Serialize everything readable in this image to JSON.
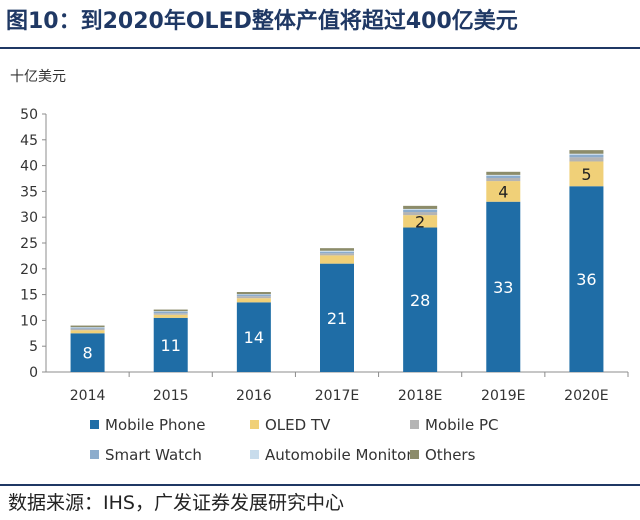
{
  "title": "图10：到2020年OLED整体产值将超过400亿美元",
  "unit_label": "十亿美元",
  "source": "数据来源：IHS，广发证券发展研究中心",
  "chart_data": {
    "type": "stacked-bar",
    "title": "到2020年OLED整体产值将超过400亿美元",
    "ylabel": "十亿美元",
    "ylim": [
      0,
      50
    ],
    "yticks": [
      0,
      5,
      10,
      15,
      20,
      25,
      30,
      35,
      40,
      45,
      50
    ],
    "grid": false,
    "legend_position": "bottom",
    "categories": [
      "2014",
      "2015",
      "2016",
      "2017E",
      "2018E",
      "2019E",
      "2020E"
    ],
    "series": [
      {
        "name": "Mobile Phone",
        "color": "#1f6da6",
        "values": [
          7.5,
          10.5,
          13.5,
          21,
          28,
          33,
          36
        ],
        "labels": [
          "8",
          "11",
          "14",
          "21",
          "28",
          "33",
          "36"
        ]
      },
      {
        "name": "OLED TV",
        "color": "#f0d078",
        "values": [
          0.6,
          0.6,
          0.8,
          1.6,
          2.4,
          4,
          4.8
        ],
        "labels": [
          "",
          "",
          "",
          "",
          "2",
          "4",
          "5"
        ]
      },
      {
        "name": "Mobile PC",
        "color": "#b4b4b4",
        "values": [
          0.3,
          0.3,
          0.4,
          0.4,
          0.6,
          0.6,
          0.8
        ],
        "labels": [
          "",
          "",
          "",
          "",
          "",
          "",
          ""
        ]
      },
      {
        "name": "Smart Watch",
        "color": "#8caccc",
        "values": [
          0.2,
          0.3,
          0.3,
          0.3,
          0.4,
          0.4,
          0.5
        ],
        "labels": [
          "",
          "",
          "",
          "",
          "",
          "",
          ""
        ]
      },
      {
        "name": "Automobile Monitor",
        "color": "#c8dcec",
        "values": [
          0.1,
          0.1,
          0.1,
          0.2,
          0.2,
          0.2,
          0.2
        ],
        "labels": [
          "",
          "",
          "",
          "",
          "",
          "",
          ""
        ]
      },
      {
        "name": "Others",
        "color": "#8c8c6a",
        "values": [
          0.3,
          0.3,
          0.4,
          0.5,
          0.6,
          0.6,
          0.7
        ],
        "labels": [
          "",
          "",
          "",
          "",
          "",
          "",
          ""
        ]
      }
    ]
  }
}
